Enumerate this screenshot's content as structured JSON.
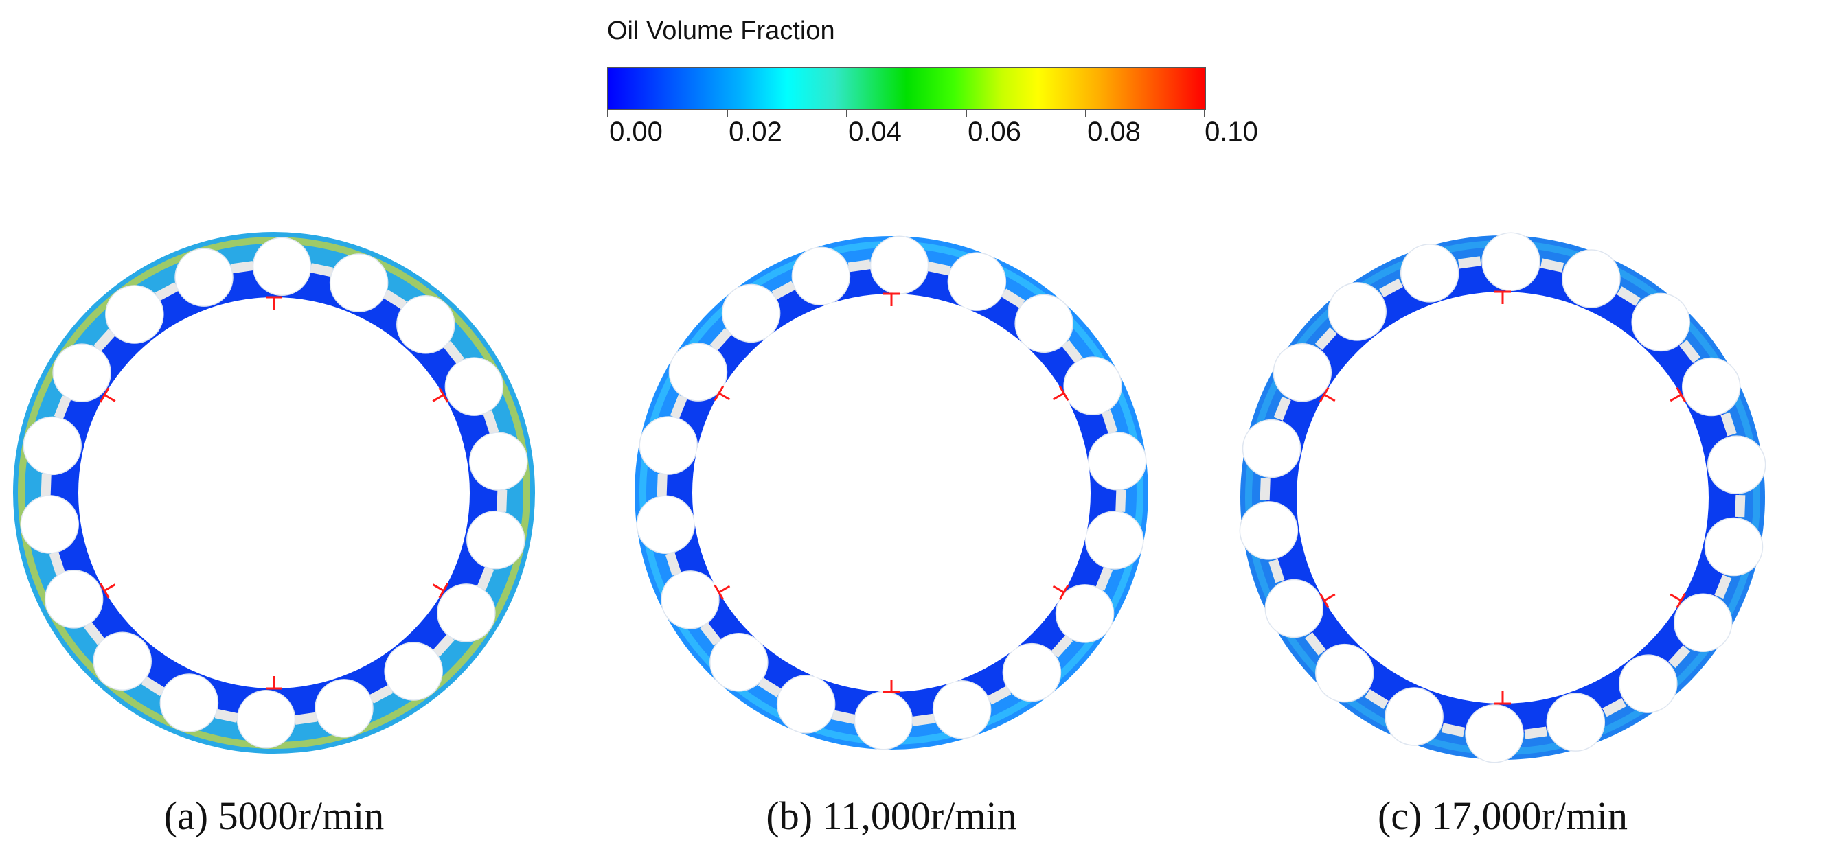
{
  "colorbar": {
    "title": "Oil Volume Fraction",
    "tick_labels": [
      "0.00",
      "0.02",
      "0.04",
      "0.06",
      "0.08",
      "0.10"
    ],
    "range": [
      0.0,
      0.1
    ],
    "colors": [
      "#0000ff",
      "#00ffff",
      "#00e000",
      "#ffff00",
      "#ff0000"
    ]
  },
  "panels": [
    {
      "caption": "(a) 5000r/min",
      "rollers": 18,
      "dominant_color": "#29a9e6",
      "highlight_color": "#ffe600"
    },
    {
      "caption": "(b) 11,000r/min",
      "rollers": 18,
      "dominant_color": "#1e90ff",
      "highlight_color": "#3ad5ff"
    },
    {
      "caption": "(c) 17,000r/min",
      "rollers": 18,
      "dominant_color": "#1f7fef",
      "highlight_color": "#2fb8f4"
    }
  ]
}
